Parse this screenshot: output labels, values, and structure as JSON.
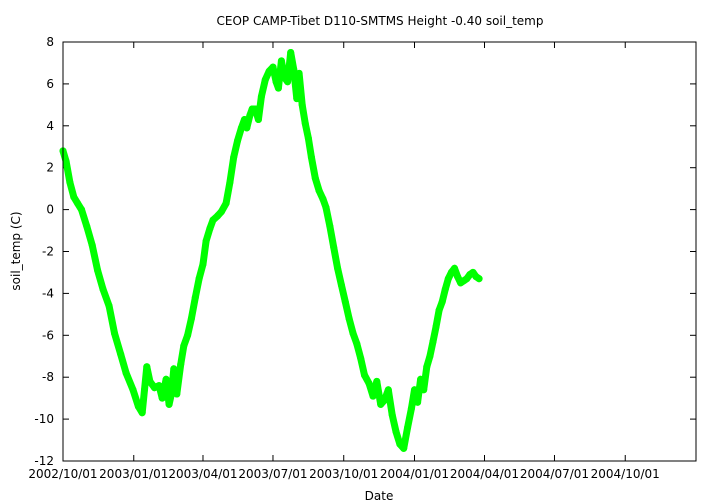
{
  "chart_data": {
    "type": "line",
    "title": "CEOP CAMP-Tibet D110-SMTMS Height -0.40 soil_temp",
    "xlabel": "Date",
    "ylabel": "soil_temp (C)",
    "xlim": [
      "2002-10-01",
      "2005-01-01"
    ],
    "ylim": [
      -12,
      8
    ],
    "x_ticks": [
      "2002/10/01",
      "2003/01/01",
      "2003/04/01",
      "2003/07/01",
      "2003/10/01",
      "2004/01/01",
      "2004/04/01",
      "2004/07/01",
      "2004/10/01"
    ],
    "y_ticks": [
      8,
      6,
      4,
      2,
      0,
      -2,
      -4,
      -6,
      -8,
      -10,
      -12
    ],
    "grid": false,
    "legend": "none",
    "series_color": "#00ff00",
    "series": [
      {
        "x": [
          "2002-10-01",
          "2002-10-05",
          "2002-10-10",
          "2002-10-15",
          "2002-10-20",
          "2002-10-25",
          "2002-11-01",
          "2002-11-08",
          "2002-11-15",
          "2002-11-22",
          "2002-11-30",
          "2002-12-07",
          "2002-12-15",
          "2002-12-22",
          "2002-12-31",
          "2003-01-07",
          "2003-01-12",
          "2003-01-15",
          "2003-01-18",
          "2003-01-22",
          "2003-01-28",
          "2003-02-03",
          "2003-02-07",
          "2003-02-12",
          "2003-02-16",
          "2003-02-19",
          "2003-02-22",
          "2003-02-26",
          "2003-03-03",
          "2003-03-07",
          "2003-03-12",
          "2003-03-17",
          "2003-03-22",
          "2003-03-27",
          "2003-04-01",
          "2003-04-05",
          "2003-04-10",
          "2003-04-14",
          "2003-04-20",
          "2003-04-25",
          "2003-05-01",
          "2003-05-06",
          "2003-05-11",
          "2003-05-16",
          "2003-05-21",
          "2003-05-25",
          "2003-05-28",
          "2003-06-01",
          "2003-06-04",
          "2003-06-08",
          "2003-06-12",
          "2003-06-16",
          "2003-06-21",
          "2003-06-26",
          "2003-07-01",
          "2003-07-05",
          "2003-07-08",
          "2003-07-12",
          "2003-07-16",
          "2003-07-20",
          "2003-07-24",
          "2003-07-28",
          "2003-08-01",
          "2003-08-04",
          "2003-08-08",
          "2003-08-12",
          "2003-08-16",
          "2003-08-20",
          "2003-08-25",
          "2003-08-30",
          "2003-09-04",
          "2003-09-08",
          "2003-09-13",
          "2003-09-18",
          "2003-09-23",
          "2003-09-28",
          "2003-10-03",
          "2003-10-08",
          "2003-10-13",
          "2003-10-18",
          "2003-10-23",
          "2003-10-28",
          "2003-11-03",
          "2003-11-08",
          "2003-11-13",
          "2003-11-18",
          "2003-11-23",
          "2003-11-28",
          "2003-12-03",
          "2003-12-08",
          "2003-12-13",
          "2003-12-18",
          "2003-12-23",
          "2003-12-28",
          "2004-01-01",
          "2004-01-05",
          "2004-01-09",
          "2004-01-13",
          "2004-01-17",
          "2004-01-21",
          "2004-01-25",
          "2004-01-29",
          "2004-02-02",
          "2004-02-06",
          "2004-02-10",
          "2004-02-14",
          "2004-02-18",
          "2004-02-22",
          "2004-02-26",
          "2004-03-01",
          "2004-03-05",
          "2004-03-09",
          "2004-03-13",
          "2004-03-17",
          "2004-03-21",
          "2004-03-25"
        ],
        "values": [
          2.8,
          2.3,
          1.3,
          0.6,
          0.3,
          0.0,
          -0.8,
          -1.7,
          -2.9,
          -3.8,
          -4.6,
          -5.9,
          -6.9,
          -7.8,
          -8.6,
          -9.4,
          -9.7,
          -8.6,
          -7.5,
          -8.2,
          -8.5,
          -8.4,
          -9.0,
          -8.1,
          -9.3,
          -8.8,
          -7.6,
          -8.8,
          -7.4,
          -6.5,
          -6.0,
          -5.2,
          -4.2,
          -3.3,
          -2.6,
          -1.5,
          -0.9,
          -0.5,
          -0.3,
          -0.1,
          0.3,
          1.3,
          2.5,
          3.3,
          3.9,
          4.3,
          3.9,
          4.5,
          4.8,
          4.8,
          4.3,
          5.4,
          6.2,
          6.6,
          6.8,
          6.1,
          5.8,
          7.1,
          6.3,
          6.1,
          7.5,
          6.7,
          5.3,
          6.5,
          5.0,
          4.1,
          3.4,
          2.5,
          1.5,
          0.9,
          0.5,
          0.1,
          -0.8,
          -1.8,
          -2.8,
          -3.6,
          -4.4,
          -5.2,
          -5.9,
          -6.4,
          -7.1,
          -7.9,
          -8.3,
          -8.9,
          -8.2,
          -9.3,
          -9.1,
          -8.6,
          -9.8,
          -10.6,
          -11.2,
          -11.4,
          -10.4,
          -9.5,
          -8.6,
          -9.2,
          -8.1,
          -8.6,
          -7.5,
          -7.0,
          -6.3,
          -5.6,
          -4.8,
          -4.4,
          -3.8,
          -3.3,
          -3.0,
          -2.8,
          -3.2,
          -3.5,
          -3.4,
          -3.3,
          -3.1,
          -3.0,
          -3.2,
          -3.3
        ]
      }
    ]
  }
}
